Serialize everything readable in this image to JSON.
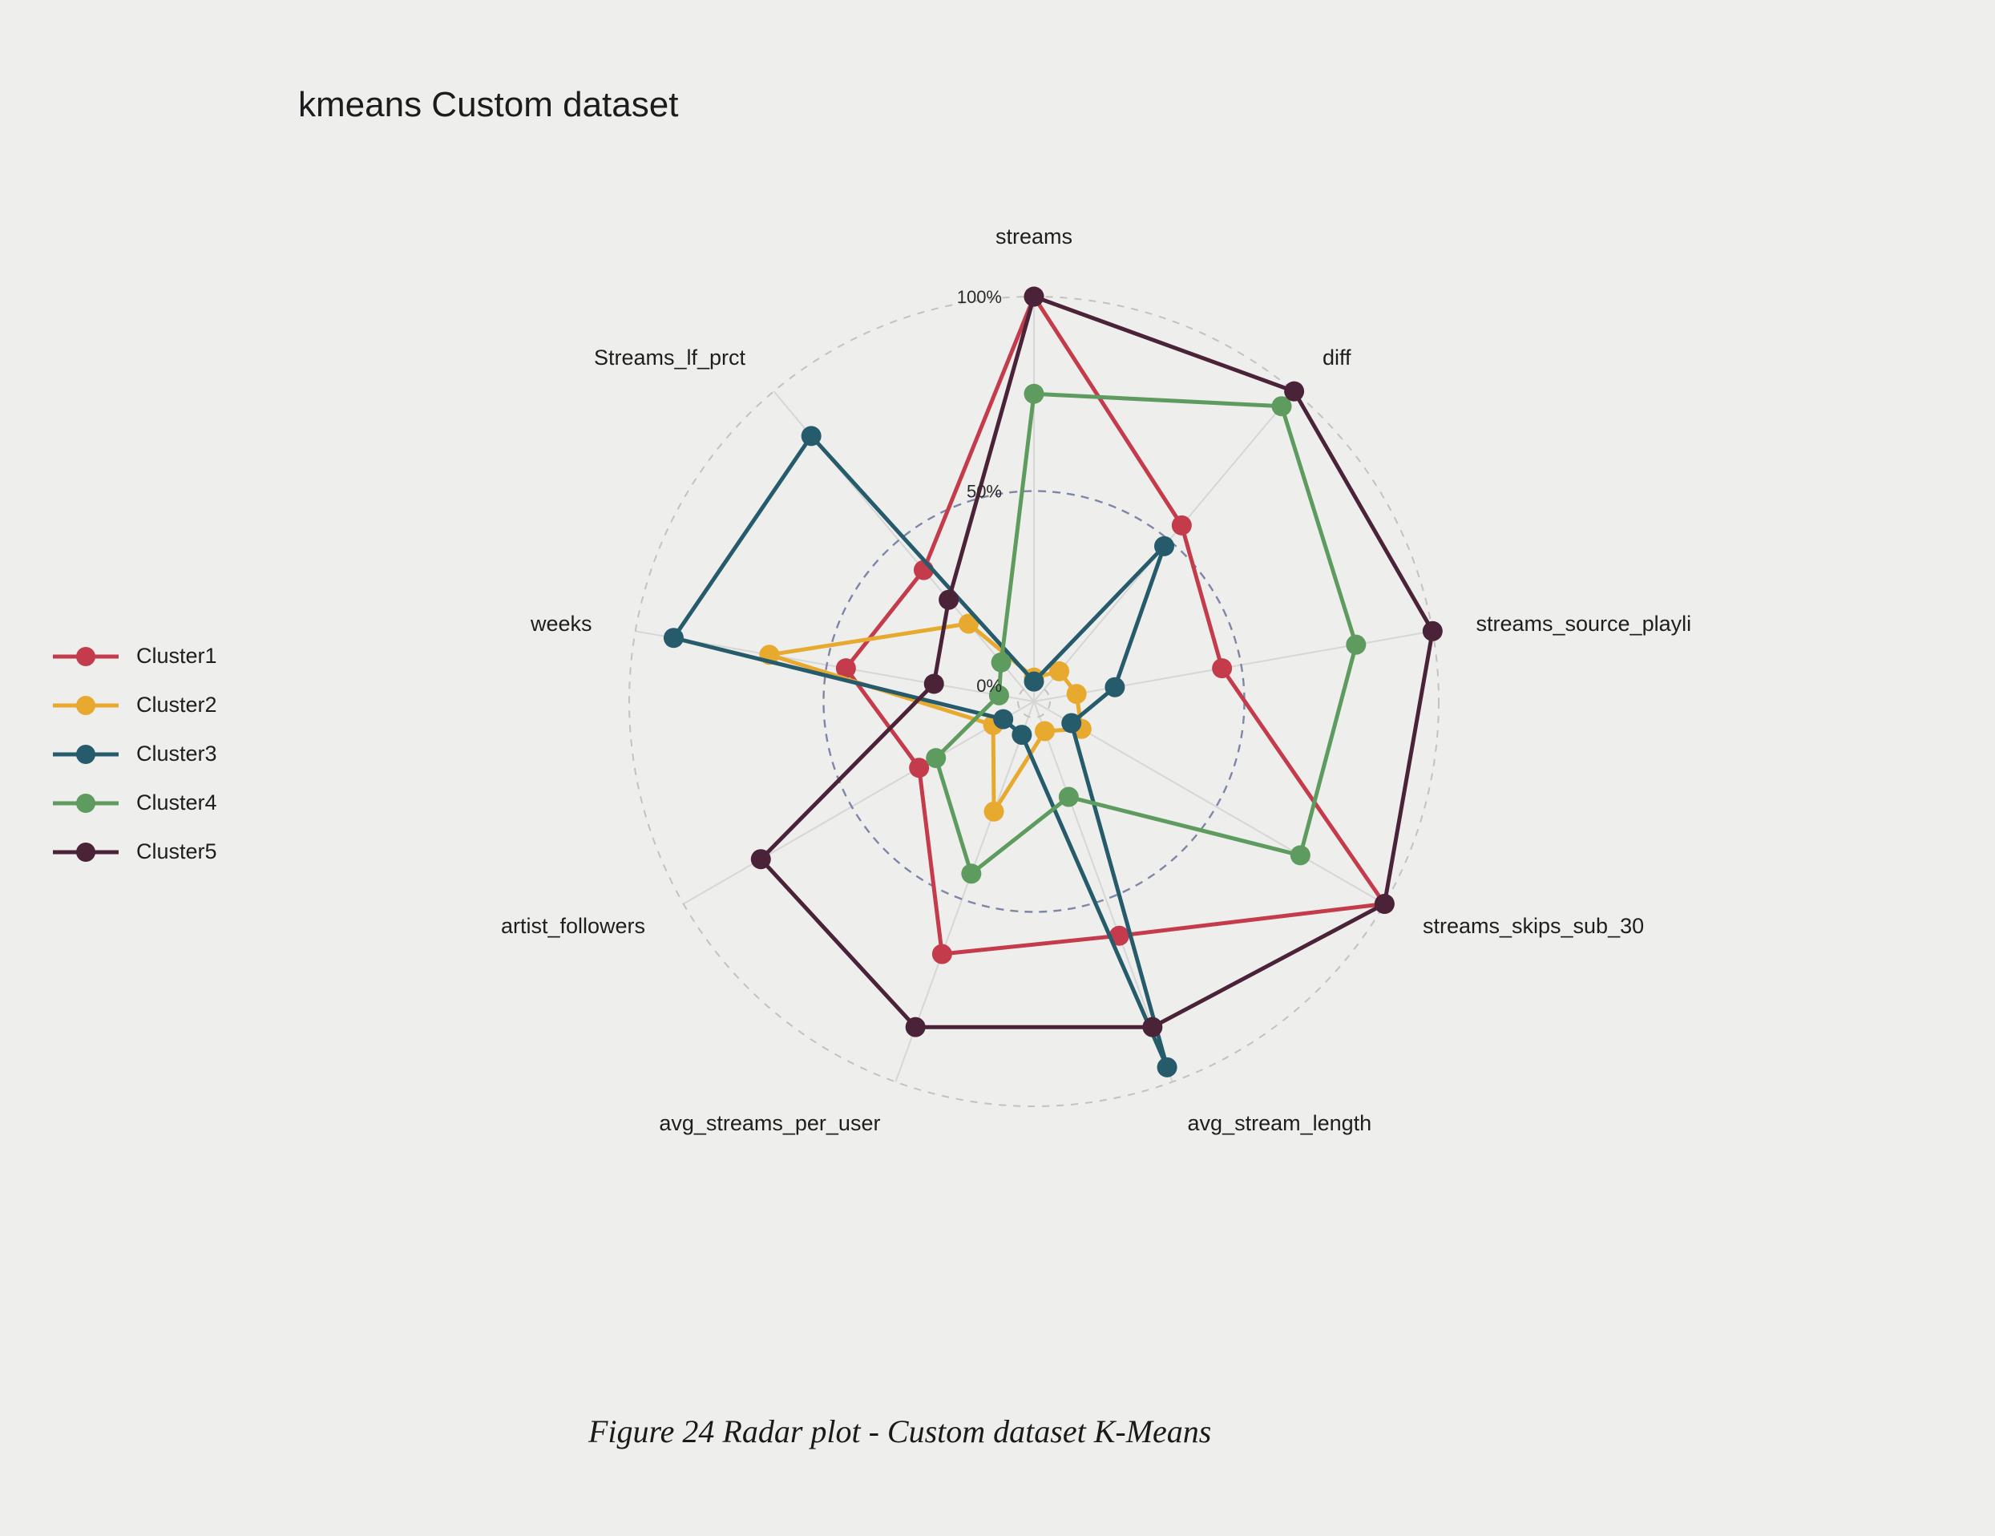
{
  "title": "kmeans Custom dataset",
  "caption": "Figure 24 Radar plot - Custom dataset K-Means",
  "chart_data": {
    "type": "radar",
    "title": "kmeans Custom dataset",
    "axes": [
      "streams",
      "diff",
      "streams_source_playli",
      "streams_skips_sub_30",
      "avg_stream_length",
      "avg_streams_per_user",
      "artist_followers",
      "weeks",
      "Streams_lf_prct"
    ],
    "tick_labels": [
      "0%",
      "50%",
      "100%"
    ],
    "range": [
      0,
      100
    ],
    "gridlines": [
      0,
      50,
      100
    ],
    "legend_position": "left",
    "series": [
      {
        "name": "Cluster1",
        "color": "#c43c4b",
        "values": [
          100,
          55,
          45,
          100,
          60,
          65,
          30,
          45,
          40
        ]
      },
      {
        "name": "Cluster2",
        "color": "#e8a92f",
        "values": [
          2,
          6,
          7,
          10,
          4,
          26,
          8,
          65,
          22
        ]
      },
      {
        "name": "Cluster3",
        "color": "#255b6b",
        "values": [
          1,
          48,
          17,
          7,
          96,
          5,
          5,
          90,
          85
        ]
      },
      {
        "name": "Cluster4",
        "color": "#5d9b5e",
        "values": [
          75,
          95,
          80,
          75,
          22,
          43,
          25,
          5,
          9
        ]
      },
      {
        "name": "Cluster5",
        "color": "#4a2338",
        "values": [
          100,
          100,
          100,
          100,
          85,
          85,
          77,
          22,
          30
        ]
      }
    ]
  }
}
